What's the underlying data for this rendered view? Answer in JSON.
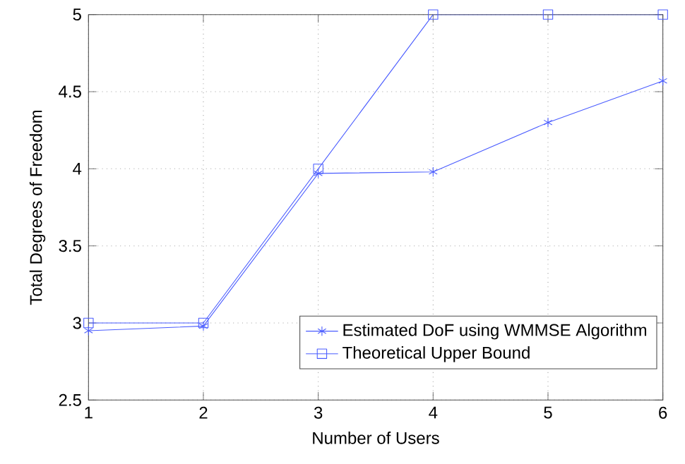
{
  "chart_data": {
    "type": "line",
    "xlabel": "Number of Users",
    "ylabel": "Total Degrees of Freedom",
    "x": [
      1,
      2,
      3,
      4,
      5,
      6
    ],
    "series": [
      {
        "name": "Estimated DoF using WMMSE Algorithm",
        "color": "#4a5cff",
        "marker": "cross",
        "values": [
          2.95,
          2.98,
          3.97,
          3.98,
          4.3,
          4.57
        ]
      },
      {
        "name": "Theoretical Upper Bound",
        "color": "#4a5cff",
        "marker": "square",
        "values": [
          3,
          3,
          4,
          5,
          5,
          5
        ]
      }
    ],
    "xlim": [
      1,
      6
    ],
    "ylim": [
      2.5,
      5
    ],
    "xticks": [
      1,
      2,
      3,
      4,
      5,
      6
    ],
    "yticks": [
      2.5,
      3,
      3.5,
      4,
      4.5,
      5
    ],
    "grid": true,
    "legend": "bottom right",
    "line_style": "solid"
  }
}
